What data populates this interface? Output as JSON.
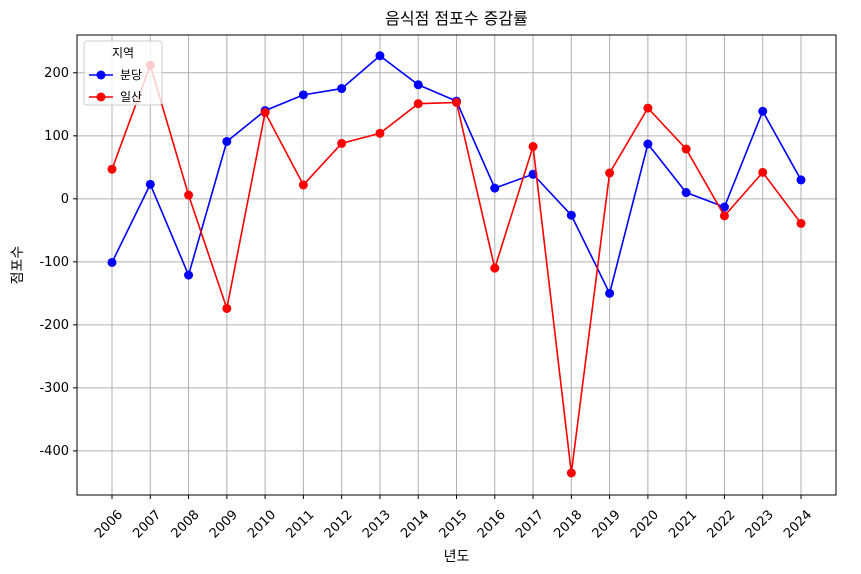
{
  "chart_data": {
    "type": "line",
    "title": "음식점 점포수 증감률",
    "xlabel": "년도",
    "ylabel": "점포수",
    "categories": [
      "2006",
      "2007",
      "2008",
      "2009",
      "2010",
      "2011",
      "2012",
      "2013",
      "2014",
      "2015",
      "2016",
      "2017",
      "2018",
      "2019",
      "2020",
      "2021",
      "2022",
      "2023",
      "2024"
    ],
    "ylim": [
      -470,
      260
    ],
    "yticks": [
      200,
      100,
      0,
      -100,
      -200,
      -300,
      -400
    ],
    "ytick_labels": [
      "200",
      "100",
      "0",
      "-100",
      "-200",
      "-300",
      "-400"
    ],
    "grid": true,
    "legend": {
      "title": "지역",
      "placement": "top-left"
    },
    "series": [
      {
        "name": "분당",
        "color": "#0000ff",
        "values": [
          -101,
          23,
          -121,
          91,
          140,
          165,
          175,
          227,
          181,
          155,
          17,
          39,
          -26,
          -150,
          87,
          10,
          -13,
          139,
          30
        ]
      },
      {
        "name": "일산",
        "color": "#ff0000",
        "values": [
          47,
          212,
          6,
          -174,
          137,
          22,
          88,
          104,
          151,
          153,
          -110,
          83,
          -435,
          41,
          144,
          79,
          -27,
          42,
          -39
        ]
      }
    ]
  }
}
